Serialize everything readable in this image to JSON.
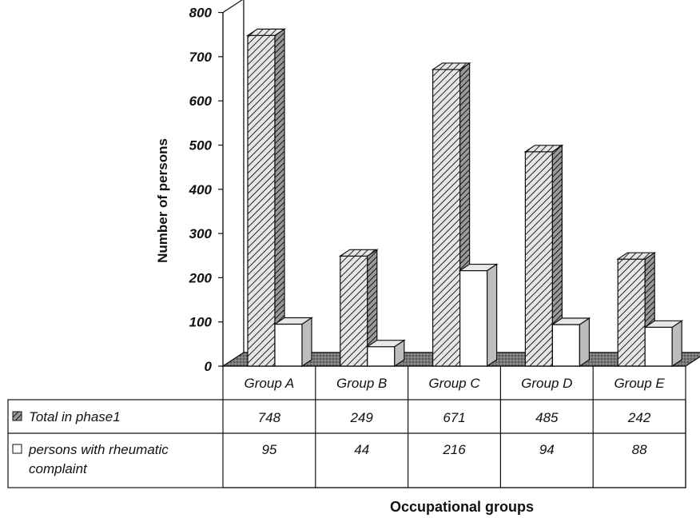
{
  "chart_data": {
    "type": "bar",
    "title": "",
    "xlabel": "Occupational groups",
    "ylabel": "Number of persons",
    "ylim": [
      0,
      800
    ],
    "yticks": [
      0,
      100,
      200,
      300,
      400,
      500,
      600,
      700,
      800
    ],
    "categories": [
      "Group A",
      "Group B",
      "Group C",
      "Group D",
      "Group E"
    ],
    "series": [
      {
        "name": "Total in phase1",
        "values": [
          748,
          249,
          671,
          485,
          242
        ],
        "fill": "hatched",
        "color": "#d8d8d8"
      },
      {
        "name": "persons with rheumatic complaint",
        "name_lines": [
          "persons with rheumatic",
          "complaint"
        ],
        "values": [
          95,
          44,
          216,
          94,
          88
        ],
        "fill": "solid",
        "color": "#ffffff"
      }
    ],
    "data_table": true,
    "legend": "in data table",
    "grid": false,
    "style": "3d"
  }
}
